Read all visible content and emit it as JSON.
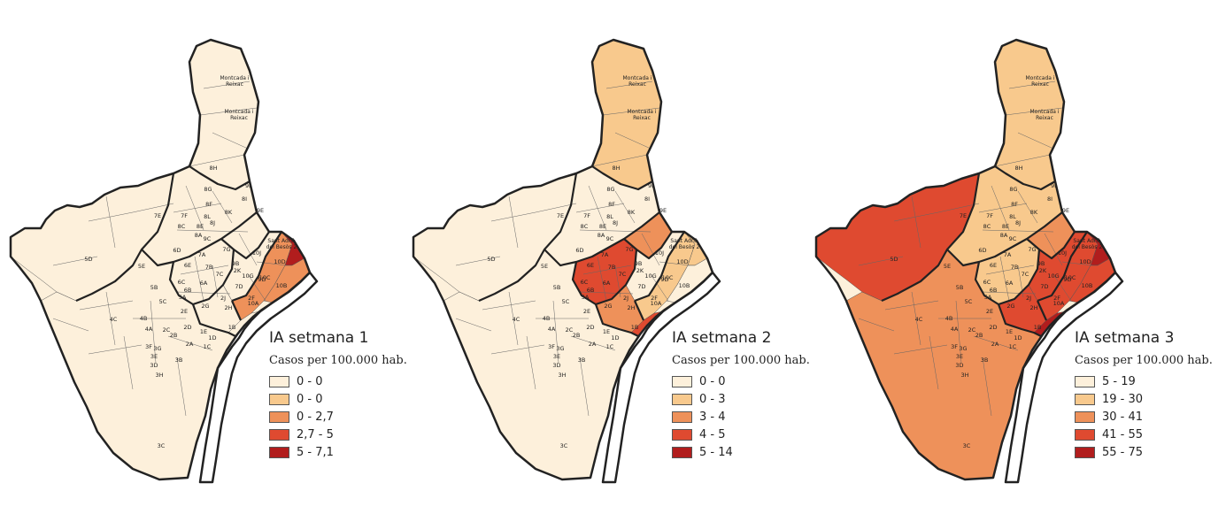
{
  "place_labels": {
    "montcada_1": [
      "Montcada i",
      "Reixac"
    ],
    "montcada_2": [
      "Montcada i",
      "Reixac"
    ],
    "sant_adria": [
      "Sant Adrià",
      "del Besòs 2"
    ]
  },
  "area_codes": [
    "8H",
    "8G",
    "8F",
    "8I",
    "8L",
    "8K",
    "9I",
    "9E",
    "7E",
    "7F",
    "8C",
    "8E",
    "8J",
    "8A",
    "9C",
    "9D",
    "5D",
    "5E",
    "6D",
    "7A",
    "7G",
    "7B",
    "9B",
    "10A",
    "10B",
    "10C",
    "10D",
    "10G",
    "10J",
    "6E",
    "6C",
    "6A",
    "6B",
    "7C",
    "7D",
    "2K",
    "2J",
    "2H",
    "2G",
    "2E",
    "2F",
    "5B",
    "5C",
    "5A",
    "4C",
    "4B",
    "4A",
    "2C",
    "2D",
    "2B",
    "2A",
    "1E",
    "1D",
    "1C",
    "1B",
    "3H",
    "3G",
    "3E",
    "3F",
    "3D",
    "3B",
    "3C"
  ],
  "panels": [
    {
      "id": "week-1",
      "title": "IA setmana 1",
      "subtitle": "Casos per 100.000 hab.",
      "legend": [
        {
          "label": "0 - 0",
          "color": "#fdf0db"
        },
        {
          "label": "0 - 0",
          "color": "#f8c98d"
        },
        {
          "label": "0 - 2,7",
          "color": "#ee915a"
        },
        {
          "label": "2,7 - 5",
          "color": "#df4a30"
        },
        {
          "label": "5 - 7,1",
          "color": "#b11d1d"
        }
      ]
    },
    {
      "id": "week-2",
      "title": "IA setmana 2",
      "subtitle": "Casos per 100.000 hab.",
      "legend": [
        {
          "label": "0 - 0",
          "color": "#fdf0db"
        },
        {
          "label": "0 - 3",
          "color": "#f8c98d"
        },
        {
          "label": "3 - 4",
          "color": "#ee915a"
        },
        {
          "label": "4 - 5",
          "color": "#df4a30"
        },
        {
          "label": "5 - 14",
          "color": "#b11d1d"
        }
      ]
    },
    {
      "id": "week-3",
      "title": "IA setmana 3",
      "subtitle": "Casos per 100.000 hab.",
      "legend": [
        {
          "label": "5 - 19",
          "color": "#fdf0db"
        },
        {
          "label": "19 - 30",
          "color": "#f8c98d"
        },
        {
          "label": "30 - 41",
          "color": "#ee915a"
        },
        {
          "label": "41 - 55",
          "color": "#df4a30"
        },
        {
          "label": "55 - 75",
          "color": "#b11d1d"
        }
      ]
    }
  ],
  "region_classes": {
    "week-1": {
      "north": 0,
      "west": 0,
      "center": 0,
      "south": 0,
      "east": 0,
      "coast_a": 2,
      "coast_b": 4,
      "coast_c": 2,
      "inner_c": 0,
      "inner_d": 0,
      "port": 0,
      "hotspot_a": 0,
      "hotspot_b": 0
    },
    "week-2": {
      "north": 1,
      "west": 0,
      "center": 0,
      "south": 0,
      "east": 0,
      "coast_a": 1,
      "coast_b": 1,
      "coast_c": 0,
      "inner_c": 3,
      "inner_d": 2,
      "port": 4,
      "hotspot_a": 3,
      "hotspot_b": 2
    },
    "week-3": {
      "north": 1,
      "west": 3,
      "center": 1,
      "south": 2,
      "east": 3,
      "coast_a": 3,
      "coast_b": 4,
      "coast_c": 3,
      "inner_c": 1,
      "inner_d": 2,
      "port": 4,
      "hotspot_a": 4,
      "hotspot_b": 3
    }
  }
}
